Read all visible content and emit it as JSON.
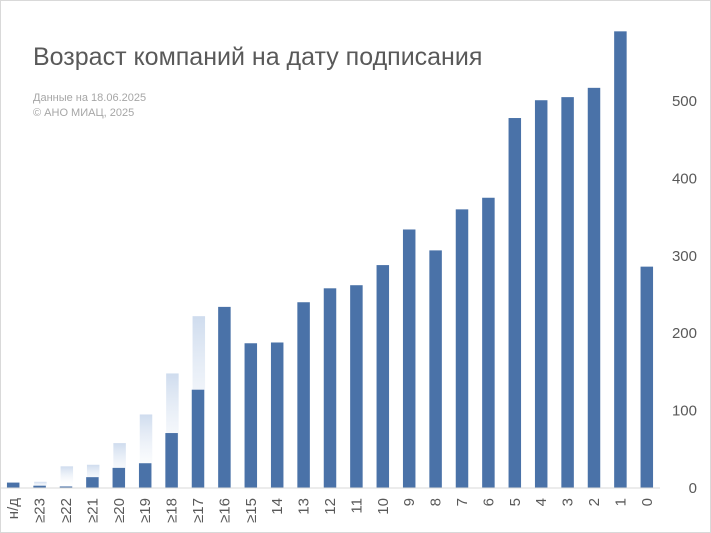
{
  "chart_data": {
    "type": "bar",
    "title": "Возраст компаний на дату подписания",
    "subtitle": [
      "Данные на 18.06.2025",
      "© АНО МИАЦ, 2025"
    ],
    "categories": [
      "н/д",
      "≥23",
      "≥22",
      "≥21",
      "≥20",
      "≥19",
      "≥18",
      "≥17",
      "≥16",
      "≥15",
      "14",
      "13",
      "12",
      "11",
      "10",
      "9",
      "8",
      "7",
      "6",
      "5",
      "4",
      "3",
      "2",
      "1",
      "0"
    ],
    "series": [
      {
        "values": [
          7,
          3,
          2,
          14,
          26,
          32,
          71,
          127,
          234,
          187,
          188,
          240,
          258,
          262,
          288,
          334,
          307,
          360,
          375,
          478,
          501,
          505,
          517,
          590,
          286
        ]
      }
    ],
    "ghost_values": [
      0,
      8,
      28,
      30,
      58,
      95,
      148,
      222,
      0,
      0,
      0,
      0,
      0,
      0,
      0,
      0,
      0,
      0,
      0,
      0,
      0,
      0,
      0,
      0,
      0
    ],
    "ylim": [
      0,
      600
    ],
    "yticks": [
      0,
      100,
      200,
      300,
      400,
      500
    ],
    "y_axis_side": "right",
    "grid": false,
    "legend": "none",
    "colors": {
      "bar": "#4a72a8",
      "ghost": "#cfdcee",
      "axis_text": "#595959",
      "axis_line": "#d9d9d9"
    }
  }
}
